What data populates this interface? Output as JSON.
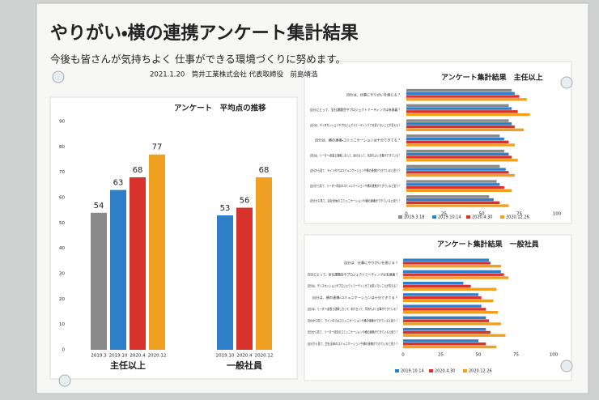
{
  "poster": {
    "title": "やりがい・横の連携アンケート集計結果",
    "subtitle": "今後も皆さんが気持ちよく 仕事ができる環境づくりに努めます。",
    "signature": "2021.1.20　筒井工業株式会社 代表取締役　前島靖浩"
  },
  "chart_data": [
    {
      "type": "bar",
      "title": "アンケート　平均点の推移",
      "ylim": [
        0,
        90
      ],
      "yticks": [
        0,
        10,
        20,
        30,
        40,
        50,
        60,
        70,
        80,
        90
      ],
      "groups": [
        {
          "name": "主任以上",
          "categories": [
            "2019.3",
            "2019.10",
            "2020.4",
            "2020.12"
          ],
          "values": [
            54,
            63,
            68,
            77
          ],
          "colors": [
            "#8a8a8a",
            "#2f7fc8",
            "#d8322c",
            "#f0a020"
          ]
        },
        {
          "name": "一般社員",
          "categories": [
            "2019.10",
            "2020.4",
            "2020.12"
          ],
          "values": [
            53,
            56,
            68
          ],
          "colors": [
            "#2f7fc8",
            "#d8322c",
            "#f0a020"
          ]
        }
      ]
    },
    {
      "type": "barh",
      "title": "アンケート集計結果　主任以上",
      "xlim": [
        0,
        100
      ],
      "xticks": [
        0,
        25,
        50,
        75,
        100
      ],
      "categories": [
        "自分は、仕事にやりがいを感じる？",
        "自分にとって、全社課題会やプロジェクトミーティングは有意義？",
        "自分は、ディスカッションやプロジェクトミーティングでは言いたいことが言える？",
        "自分は、横の連携・コミュニケーションは十分できてる？",
        "自分は、リーダー・部長と理解し合って、助け合って、気持ちよく仕事ができている？",
        "自分から見て、ライン内ではコミュニケーションや横の連携ができていると思う？",
        "自分から見て、リーダー同志のコミュニケーションや横の連携ができていると思う？",
        "自分から見て、会社全体のコミュニケーションや横の連携ができていると思う？"
      ],
      "series": [
        {
          "name": "2019.3.18",
          "color": "#8a8a8a",
          "values": [
            70,
            68,
            68,
            62,
            65,
            62,
            60,
            55
          ]
        },
        {
          "name": "2019.10.14",
          "color": "#2f7fc8",
          "values": [
            72,
            70,
            70,
            65,
            68,
            66,
            62,
            58
          ]
        },
        {
          "name": "2020.4.30",
          "color": "#d8322c",
          "values": [
            75,
            74,
            72,
            68,
            70,
            68,
            65,
            62
          ]
        },
        {
          "name": "2020.12.26",
          "color": "#f0a020",
          "values": [
            80,
            82,
            78,
            72,
            74,
            72,
            70,
            68
          ]
        }
      ]
    },
    {
      "type": "barh",
      "title": "アンケート集計結果　一般社員",
      "xlim": [
        0,
        100
      ],
      "xticks": [
        0,
        25,
        50,
        75,
        100
      ],
      "categories": [
        "自分は、仕事にやりがいを感じる？",
        "自分にとって、全社課題会やプロジェクトミーティングは有意義？",
        "自分は、ディスカッションやプロジェクトミーティングでは言いたいことが言える？",
        "自分は、横の連携・コミュニケーションは十分できてる？",
        "自分は、リーダー・部長と理解し合って、助け合って、気持ちよく仕事ができている？",
        "自分から見て、ライン内ではコミュニケーションや横の連携ができていると思う？",
        "自分から見て、リーダー同志のコミュニケーションや横の連携ができていると思う？",
        "自分から見て、会社全体のコミュニケーションや横の連携ができていると思う？"
      ],
      "series": [
        {
          "name": "2019.10.14",
          "color": "#2f7fc8",
          "values": [
            57,
            65,
            40,
            50,
            52,
            55,
            55,
            50
          ]
        },
        {
          "name": "2020.4.30",
          "color": "#d8322c",
          "values": [
            58,
            67,
            45,
            52,
            55,
            57,
            58,
            55
          ]
        },
        {
          "name": "2020.12.26",
          "color": "#f0a020",
          "values": [
            65,
            70,
            62,
            60,
            63,
            65,
            68,
            62
          ]
        }
      ]
    }
  ]
}
